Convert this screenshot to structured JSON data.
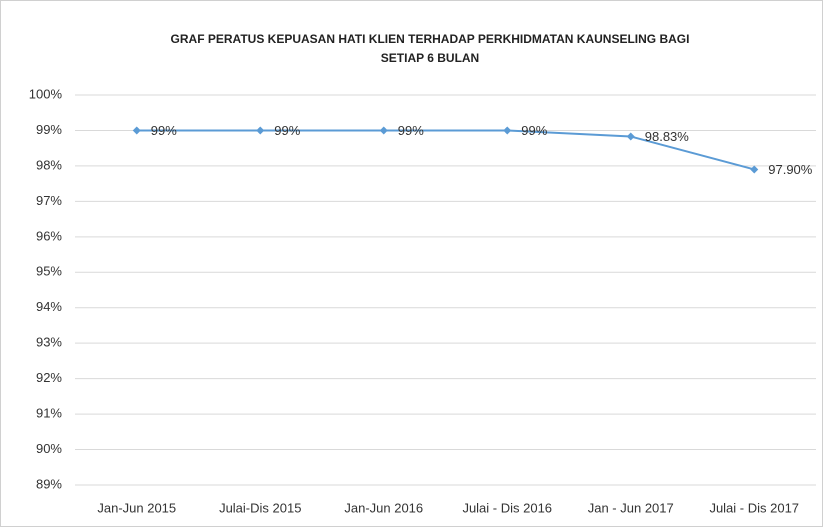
{
  "chart_data": {
    "type": "line",
    "title": [
      "GRAF PERATUS KEPUASAN HATI KLIEN TERHADAP PERKHIDMATAN KAUNSELING BAGI",
      "SETIAP 6 BULAN"
    ],
    "categories": [
      "Jan-Jun 2015",
      "Julai-Dis 2015",
      "Jan-Jun 2016",
      "Julai - Dis 2016",
      "Jan - Jun 2017",
      "Julai - Dis 2017"
    ],
    "series": [
      {
        "color": "#5b9bd5",
        "values": [
          99,
          99,
          99,
          99,
          98.83,
          97.9
        ],
        "value_labels": [
          "99%",
          "99%",
          "99%",
          "99%",
          "98.83%",
          "97.90%"
        ]
      }
    ],
    "ylim": [
      89,
      100
    ],
    "yticks": [
      {
        "value": 89,
        "label": "89%"
      },
      {
        "value": 90,
        "label": "90%"
      },
      {
        "value": 91,
        "label": "91%"
      },
      {
        "value": 92,
        "label": "92%"
      },
      {
        "value": 93,
        "label": "93%"
      },
      {
        "value": 94,
        "label": "94%"
      },
      {
        "value": 95,
        "label": "95%"
      },
      {
        "value": 96,
        "label": "96%"
      },
      {
        "value": 97,
        "label": "97%"
      },
      {
        "value": 98,
        "label": "98%"
      },
      {
        "value": 99,
        "label": "99%"
      },
      {
        "value": 100,
        "label": "100%"
      }
    ],
    "grid": true
  }
}
